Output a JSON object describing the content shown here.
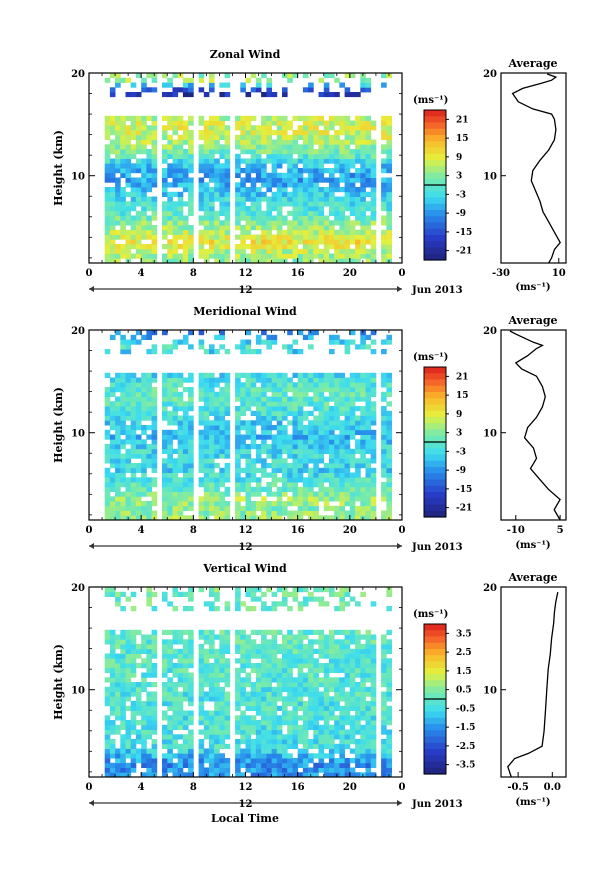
{
  "chart_data": [
    {
      "type": "heatmap",
      "title": "Zonal Wind",
      "xlabel": "",
      "ylabel": "Height (km)",
      "x_ticks": [
        "0",
        "4",
        "8",
        "12",
        "16",
        "20",
        "0"
      ],
      "y_ticks": [
        "10",
        "20"
      ],
      "xlim": [
        0,
        24
      ],
      "ylim": [
        1.5,
        20
      ],
      "date_label": "12",
      "date_suffix": "Jun 2013",
      "colorbar": {
        "unit": "(ms⁻¹)",
        "ticks": [
          "21",
          "15",
          "9",
          "3",
          "-3",
          "-9",
          "-15",
          "-21"
        ],
        "range": [
          -24,
          24
        ]
      },
      "profile": {
        "title": "Average",
        "x_ticks": [
          "-30",
          "10"
        ],
        "y_ticks": [
          "10",
          "20"
        ],
        "xlim": [
          -30,
          15
        ],
        "unit": "(ms⁻¹)",
        "points": [
          [
            3,
            1.5
          ],
          [
            5,
            2
          ],
          [
            7,
            2.8
          ],
          [
            11,
            3.5
          ],
          [
            7,
            4.5
          ],
          [
            3,
            5.5
          ],
          [
            -1,
            6.5
          ],
          [
            -3,
            7.5
          ],
          [
            -6,
            8.5
          ],
          [
            -9,
            9.5
          ],
          [
            -8,
            10.5
          ],
          [
            -3,
            11.5
          ],
          [
            3,
            12.5
          ],
          [
            7,
            13.5
          ],
          [
            8,
            14.5
          ],
          [
            7,
            15.5
          ],
          [
            5,
            16
          ],
          [
            -8,
            16.5
          ],
          [
            -18,
            17.2
          ],
          [
            -22,
            18
          ],
          [
            -15,
            18.5
          ],
          [
            -2,
            19
          ],
          [
            5,
            19.3
          ],
          [
            8,
            19.6
          ],
          [
            2,
            19.9
          ]
        ]
      }
    },
    {
      "type": "heatmap",
      "title": "Meridional Wind",
      "xlabel": "",
      "ylabel": "Height (km)",
      "x_ticks": [
        "0",
        "4",
        "8",
        "12",
        "16",
        "20",
        "0"
      ],
      "y_ticks": [
        "10",
        "20"
      ],
      "xlim": [
        0,
        24
      ],
      "ylim": [
        1.5,
        20
      ],
      "date_label": "12",
      "date_suffix": "Jun 2013",
      "colorbar": {
        "unit": "(ms⁻¹)",
        "ticks": [
          "21",
          "15",
          "9",
          "3",
          "-3",
          "-9",
          "-15",
          "-21"
        ],
        "range": [
          -24,
          24
        ]
      },
      "profile": {
        "title": "Average",
        "x_ticks": [
          "-10",
          "5"
        ],
        "y_ticks": [
          "10",
          "20"
        ],
        "xlim": [
          -15,
          7
        ],
        "unit": "(ms⁻¹)",
        "points": [
          [
            5,
            1.5
          ],
          [
            3,
            2.5
          ],
          [
            5,
            3.5
          ],
          [
            1,
            4.5
          ],
          [
            -2,
            5.5
          ],
          [
            -5,
            6.5
          ],
          [
            -3,
            7.5
          ],
          [
            -4,
            8.5
          ],
          [
            -7,
            9.5
          ],
          [
            -6,
            10.5
          ],
          [
            -3,
            11.5
          ],
          [
            -1,
            12.5
          ],
          [
            0,
            13.5
          ],
          [
            -1,
            14.5
          ],
          [
            -3,
            15.5
          ],
          [
            -8,
            16.2
          ],
          [
            -10,
            16.8
          ],
          [
            -6,
            17.5
          ],
          [
            -3,
            18.2
          ],
          [
            -1,
            18.5
          ],
          [
            -4,
            18.8
          ],
          [
            -7,
            19.2
          ],
          [
            -10,
            19.6
          ],
          [
            -12,
            19.9
          ]
        ]
      }
    },
    {
      "type": "heatmap",
      "title": "Vertical Wind",
      "xlabel": "Local Time",
      "ylabel": "Height (km)",
      "x_ticks": [
        "0",
        "4",
        "8",
        "12",
        "16",
        "20",
        "0"
      ],
      "y_ticks": [
        "10",
        "20"
      ],
      "xlim": [
        0,
        24
      ],
      "ylim": [
        1.5,
        20
      ],
      "date_label": "12",
      "date_suffix": "Jun 2013",
      "colorbar": {
        "unit": "(ms⁻¹)",
        "ticks": [
          "3.5",
          "2.5",
          "1.5",
          "0.5",
          "-0.5",
          "-1.5",
          "-2.5",
          "-3.5"
        ],
        "range": [
          -4,
          4
        ]
      },
      "profile": {
        "title": "Average",
        "x_ticks": [
          "-0.5",
          "0.0"
        ],
        "y_ticks": [
          "10",
          "20"
        ],
        "xlim": [
          -0.75,
          0.2
        ],
        "unit": "(ms⁻¹)",
        "points": [
          [
            -0.6,
            1.5
          ],
          [
            -0.65,
            2.5
          ],
          [
            -0.55,
            3.3
          ],
          [
            -0.35,
            3.8
          ],
          [
            -0.15,
            4.5
          ],
          [
            -0.12,
            6
          ],
          [
            -0.1,
            8
          ],
          [
            -0.08,
            10
          ],
          [
            -0.06,
            12
          ],
          [
            -0.03,
            13.5
          ],
          [
            -0.01,
            15
          ],
          [
            0.02,
            16.5
          ],
          [
            0.03,
            17.5
          ],
          [
            0.05,
            18.5
          ],
          [
            0.08,
            19.5
          ]
        ]
      }
    }
  ]
}
